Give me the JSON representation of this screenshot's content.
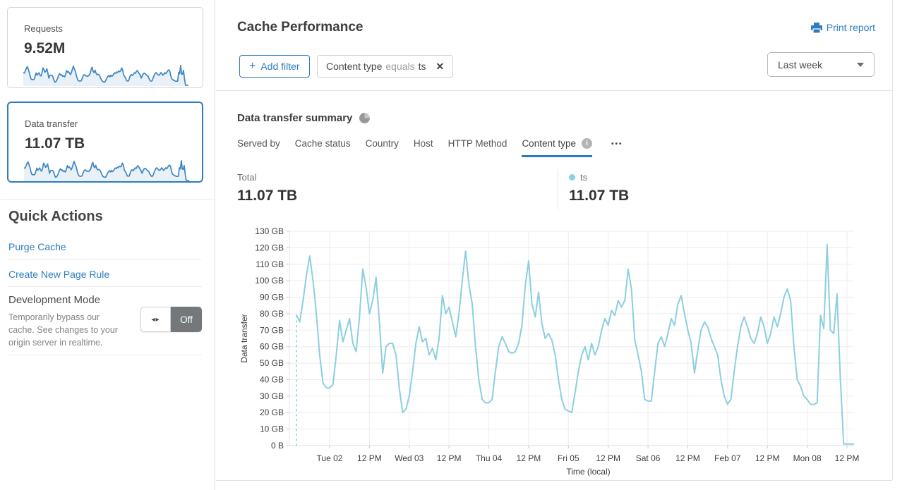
{
  "colors": {
    "accent": "#2f7cbe",
    "chart_line": "#8ccfe0",
    "spark_line": "#3e86c2",
    "spark_fill": "rgba(62,134,194,0.12)",
    "toggle_off_bg": "#75787b"
  },
  "sidebar": {
    "cards": [
      {
        "label": "Requests",
        "value": "9.52M",
        "selected": false
      },
      {
        "label": "Data transfer",
        "value": "11.07 TB",
        "selected": true
      }
    ],
    "quick_actions": {
      "title": "Quick Actions",
      "links": [
        {
          "label": "Purge Cache"
        },
        {
          "label": "Create New Page Rule"
        }
      ],
      "dev_mode": {
        "title": "Development Mode",
        "description": "Temporarily bypass our cache. See changes to your origin server in realtime.",
        "toggle_state": "Off",
        "toggle_icon": "◂▸"
      }
    }
  },
  "header": {
    "title": "Cache Performance",
    "print_label": "Print report",
    "add_filter": {
      "plus": "+",
      "label": "Add filter"
    },
    "filter_chip": {
      "field": "Content type",
      "operator": "equals",
      "value": "ts",
      "remove_icon": "✕"
    },
    "time_range": {
      "selected": "Last week"
    }
  },
  "summary": {
    "title": "Data transfer summary",
    "tabs": [
      {
        "label": "Served by",
        "active": false
      },
      {
        "label": "Cache status",
        "active": false
      },
      {
        "label": "Country",
        "active": false
      },
      {
        "label": "Host",
        "active": false
      },
      {
        "label": "HTTP Method",
        "active": false
      },
      {
        "label": "Content type",
        "active": true
      }
    ],
    "more_icon": "•••",
    "info_icon": "i",
    "total_label": "Total",
    "total_value": "11.07 TB",
    "legend": {
      "name": "ts",
      "value": "11.07 TB",
      "color": "#8ccfe0"
    }
  },
  "chart_data": {
    "type": "line",
    "title": "Data transfer summary",
    "xlabel": "Time (local)",
    "ylabel": "Data transfer",
    "unit": "GB",
    "ylim": [
      0,
      130
    ],
    "grid": true,
    "start_boundary_dashed": true,
    "yticks": [
      {
        "value": 0,
        "label": "0 B"
      },
      {
        "value": 10,
        "label": "10 GB"
      },
      {
        "value": 20,
        "label": "20 GB"
      },
      {
        "value": 30,
        "label": "30 GB"
      },
      {
        "value": 40,
        "label": "40 GB"
      },
      {
        "value": 50,
        "label": "50 GB"
      },
      {
        "value": 60,
        "label": "60 GB"
      },
      {
        "value": 70,
        "label": "70 GB"
      },
      {
        "value": 80,
        "label": "80 GB"
      },
      {
        "value": 90,
        "label": "90 GB"
      },
      {
        "value": 100,
        "label": "100 GB"
      },
      {
        "value": 110,
        "label": "110 GB"
      },
      {
        "value": 120,
        "label": "120 GB"
      },
      {
        "value": 130,
        "label": "130 GB"
      }
    ],
    "xticks": [
      {
        "hour": 10,
        "label": "Tue 02"
      },
      {
        "hour": 22,
        "label": "12 PM"
      },
      {
        "hour": 34,
        "label": "Wed 03"
      },
      {
        "hour": 46,
        "label": "12 PM"
      },
      {
        "hour": 58,
        "label": "Thu 04"
      },
      {
        "hour": 70,
        "label": "12 PM"
      },
      {
        "hour": 82,
        "label": "Fri 05"
      },
      {
        "hour": 94,
        "label": "12 PM"
      },
      {
        "hour": 106,
        "label": "Sat 06"
      },
      {
        "hour": 118,
        "label": "12 PM"
      },
      {
        "hour": 130,
        "label": "Feb 07"
      },
      {
        "hour": 142,
        "label": "12 PM"
      },
      {
        "hour": 154,
        "label": "Mon 08"
      },
      {
        "hour": 166,
        "label": "12 PM"
      }
    ],
    "series": [
      {
        "name": "ts",
        "color": "#8ccfe0",
        "values_are_hourly_GB": true,
        "values": [
          79,
          75,
          88,
          103,
          115,
          100,
          80,
          55,
          38,
          35,
          35,
          37,
          55,
          76,
          63,
          70,
          77,
          62,
          57,
          78,
          107,
          96,
          80,
          88,
          102,
          75,
          44,
          60,
          62,
          62,
          55,
          35,
          20,
          22,
          30,
          45,
          62,
          72,
          63,
          65,
          55,
          59,
          52,
          65,
          91,
          80,
          84,
          75,
          66,
          80,
          100,
          118,
          98,
          86,
          60,
          40,
          28,
          26,
          26,
          28,
          45,
          60,
          66,
          62,
          57,
          56,
          57,
          62,
          73,
          97,
          112,
          86,
          78,
          93,
          74,
          65,
          68,
          64,
          55,
          40,
          28,
          22,
          21,
          20,
          32,
          45,
          55,
          60,
          52,
          62,
          55,
          60,
          70,
          77,
          73,
          82,
          79,
          88,
          84,
          88,
          107,
          95,
          64,
          55,
          45,
          28,
          27,
          27,
          45,
          62,
          66,
          60,
          68,
          77,
          73,
          86,
          91,
          80,
          70,
          62,
          44,
          58,
          70,
          75,
          72,
          65,
          60,
          55,
          40,
          30,
          25,
          28,
          45,
          60,
          72,
          78,
          72,
          65,
          62,
          68,
          78,
          72,
          62,
          68,
          78,
          72,
          80,
          90,
          95,
          88,
          60,
          40,
          36,
          30,
          28,
          25,
          25,
          26,
          79,
          71,
          122,
          70,
          68,
          92,
          40,
          1,
          1,
          1,
          1
        ]
      }
    ]
  }
}
